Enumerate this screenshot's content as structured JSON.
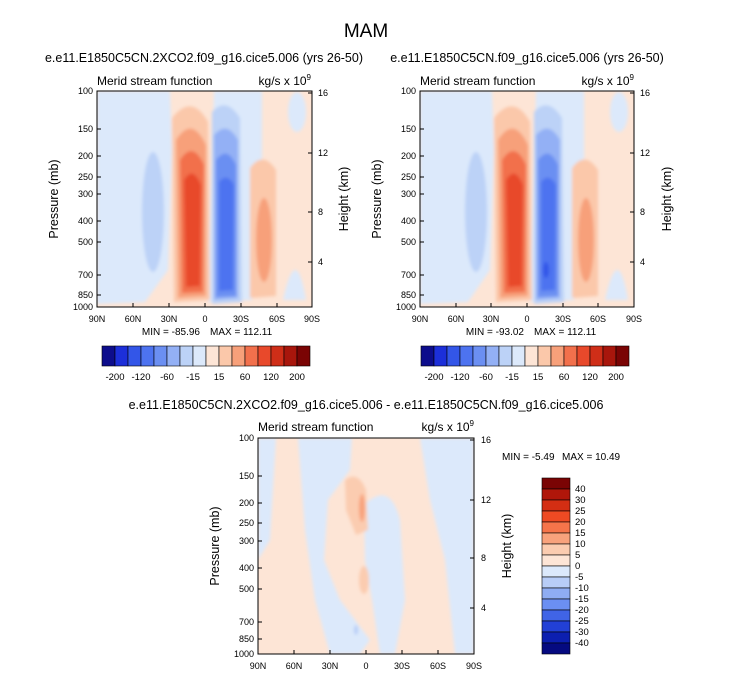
{
  "figure_title": "MAM",
  "chart_data": [
    {
      "type": "heatmap",
      "panel": "top-left",
      "case_title": "e.e11.E1850C5CN.2XCO2.f09_g16.cice5.006 (yrs 26-50)",
      "field_label": "Merid stream function",
      "units_base": "kg/s x 10",
      "units_exp": "9",
      "ylabel": "Pressure (mb)",
      "ylabel_right": "Height (km)",
      "x_ticks": [
        "90N",
        "60N",
        "30N",
        "0",
        "30S",
        "60S",
        "90S"
      ],
      "y_ticks": [
        "100",
        "150",
        "200",
        "250",
        "300",
        "400",
        "500",
        "700",
        "850",
        "1000"
      ],
      "height_ticks": [
        "16",
        "12",
        "8",
        "4"
      ],
      "ylim": [
        1000,
        100
      ],
      "min_label": "MIN = -85.96",
      "max_label": "MAX = 112.11",
      "min": -85.96,
      "max": 112.11,
      "colorbar_labels": [
        "-200",
        "-120",
        "-60",
        "-15",
        "15",
        "60",
        "120",
        "200"
      ]
    },
    {
      "type": "heatmap",
      "panel": "top-right",
      "case_title": "e.e11.E1850C5CN.f09_g16.cice5.006 (yrs 26-50)",
      "field_label": "Merid stream function",
      "units_base": "kg/s x 10",
      "units_exp": "9",
      "ylabel": "Pressure (mb)",
      "ylabel_right": "Height (km)",
      "x_ticks": [
        "90N",
        "60N",
        "30N",
        "0",
        "30S",
        "60S",
        "90S"
      ],
      "y_ticks": [
        "100",
        "150",
        "200",
        "250",
        "300",
        "400",
        "500",
        "700",
        "850",
        "1000"
      ],
      "height_ticks": [
        "16",
        "12",
        "8",
        "4"
      ],
      "ylim": [
        1000,
        100
      ],
      "min_label": "MIN = -93.02",
      "max_label": "MAX = 112.11",
      "min": -93.02,
      "max": 112.11,
      "colorbar_labels": [
        "-200",
        "-120",
        "-60",
        "-15",
        "15",
        "60",
        "120",
        "200"
      ]
    },
    {
      "type": "heatmap",
      "panel": "bottom-difference",
      "case_title": "e.e11.E1850C5CN.2XCO2.f09_g16.cice5.006 - e.e11.E1850C5CN.f09_g16.cice5.006",
      "field_label": "Merid stream function",
      "units_base": "kg/s x 10",
      "units_exp": "9",
      "ylabel": "Pressure (mb)",
      "ylabel_right": "Height (km)",
      "x_ticks": [
        "90N",
        "60N",
        "30N",
        "0",
        "30S",
        "60S",
        "90S"
      ],
      "y_ticks": [
        "100",
        "150",
        "200",
        "250",
        "300",
        "400",
        "500",
        "700",
        "850",
        "1000"
      ],
      "height_ticks": [
        "16",
        "12",
        "8",
        "4"
      ],
      "ylim": [
        1000,
        100
      ],
      "min_label": "MIN = -5.49",
      "max_label": "MAX = 10.49",
      "min": -5.49,
      "max": 10.49,
      "colorbar_labels": [
        "40",
        "30",
        "25",
        "20",
        "15",
        "10",
        "5",
        "0",
        "-5",
        "-10",
        "-15",
        "-20",
        "-25",
        "-30",
        "-40"
      ]
    }
  ],
  "colors": {
    "full_palette": [
      "#0d0d8c",
      "#1c2fd9",
      "#3356e8",
      "#4d73f0",
      "#6b8ff2",
      "#93b0f5",
      "#bcd2f7",
      "#dce9fb",
      "#fde5d6",
      "#fbc8aa",
      "#f7a07a",
      "#f2704c",
      "#e8492b",
      "#cf2e18",
      "#a8160c",
      "#7a0404"
    ],
    "diff_palette": [
      "#7a0404",
      "#b0160a",
      "#d42e13",
      "#ee4a23",
      "#f5744a",
      "#f8a27c",
      "#fbccb0",
      "#fde5d6",
      "#dce9fb",
      "#b8cdf7",
      "#8fadf3",
      "#6b8ff2",
      "#4064e6",
      "#2240d6",
      "#0c1fb0",
      "#050a80"
    ]
  }
}
